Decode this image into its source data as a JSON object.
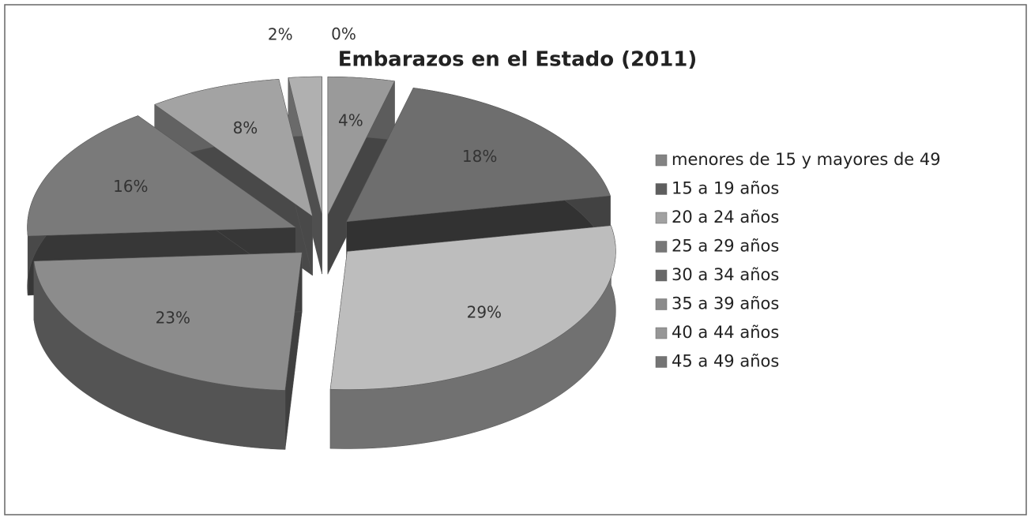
{
  "chart_data": {
    "type": "pie",
    "title": "Embarazos en el Estado (2011)",
    "categories": [
      "menores de 15 y mayores de 49",
      "15 a 19 años",
      "20 a 24 años",
      "25 a 29 años",
      "30 a 34 años",
      "35 a 39 años",
      "40 a 44 años",
      "45 a 49 años"
    ],
    "values": [
      4,
      18,
      29,
      23,
      16,
      8,
      2,
      0
    ],
    "value_labels": [
      "4%",
      "18%",
      "29%",
      "23%",
      "16%",
      "8%",
      "2%",
      "0%"
    ],
    "colors": [
      "#9a9a9a",
      "#6e6e6e",
      "#bdbdbd",
      "#8c8c8c",
      "#7a7a7a",
      "#a3a3a3",
      "#b0b0b0",
      "#888888"
    ],
    "legend": "right"
  }
}
